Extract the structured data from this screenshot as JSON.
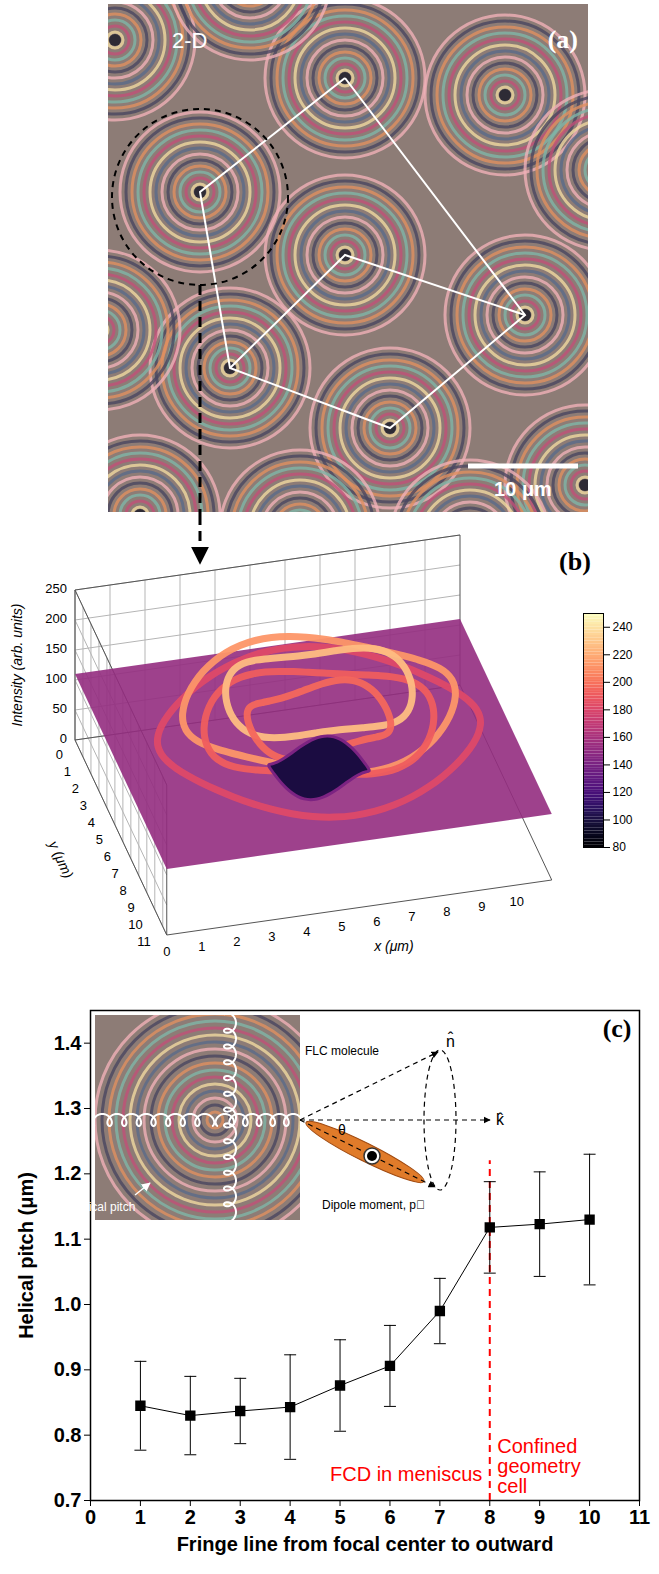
{
  "chart_data": [
    {
      "type": "image",
      "panel": "(a)",
      "annotations": [
        "2-D"
      ],
      "scale_bar": "10 μm"
    },
    {
      "type": "surface",
      "panel": "(b)",
      "xlabel": "x (μm)",
      "ylabel": "y (μm)",
      "zlabel": "Intensity (arb. units)",
      "xlim": [
        0,
        11
      ],
      "xticks": [
        0,
        1,
        2,
        3,
        4,
        5,
        6,
        7,
        8,
        9,
        10
      ],
      "ylim": [
        0,
        11.5
      ],
      "yticks": [
        0,
        1,
        2,
        3,
        4,
        5,
        6,
        7,
        8,
        9,
        10,
        11
      ],
      "zlim": [
        0,
        250
      ],
      "zticks": [
        0,
        50,
        100,
        150,
        200,
        250
      ],
      "colorbar": {
        "range": [
          80,
          250
        ],
        "ticks": [
          80,
          100,
          120,
          140,
          160,
          180,
          200,
          220,
          240
        ]
      },
      "grid": true
    },
    {
      "type": "line",
      "panel": "(c)",
      "xlabel": "Fringe line from focal center to outward",
      "ylabel": "Helical pitch (μm)",
      "x": [
        1,
        2,
        3,
        4,
        5,
        6,
        7,
        8,
        9,
        10
      ],
      "values": [
        0.845,
        0.83,
        0.837,
        0.843,
        0.876,
        0.906,
        0.99,
        1.118,
        1.123,
        1.13
      ],
      "errors": [
        0.068,
        0.06,
        0.05,
        0.08,
        0.07,
        0.062,
        0.05,
        0.07,
        0.08,
        0.1
      ],
      "color": "#000000",
      "marker": "square",
      "xlim": [
        0,
        11
      ],
      "xticks": [
        0,
        1,
        2,
        3,
        4,
        5,
        6,
        7,
        8,
        9,
        10,
        11
      ],
      "ylim": [
        0.7,
        1.45
      ],
      "yticks": [
        0.7,
        0.8,
        0.9,
        {
          "value": 1,
          "label": "1.0"
        },
        1.1,
        1.2,
        1.3,
        1.4
      ],
      "divider": {
        "x": 8,
        "ylim": [
          0.7,
          1.22
        ],
        "color": "#ff0000",
        "line_style": "dashed"
      },
      "annotations": [
        {
          "text": "FCD in meniscus",
          "x": 7.85,
          "y": 0.74,
          "color": "#ff0000"
        },
        {
          "text": "Confined geometry cell",
          "x": 8.15,
          "y": 0.752,
          "color": "#ff0000"
        }
      ],
      "inset": {
        "pitch_label": "Helical pitch",
        "molecule_label": "FLC molecule",
        "director": "n̂",
        "layer_normal": "k̂",
        "tilt_angle": "θ",
        "dipole_label": "Dipole moment, p⃗"
      }
    }
  ]
}
